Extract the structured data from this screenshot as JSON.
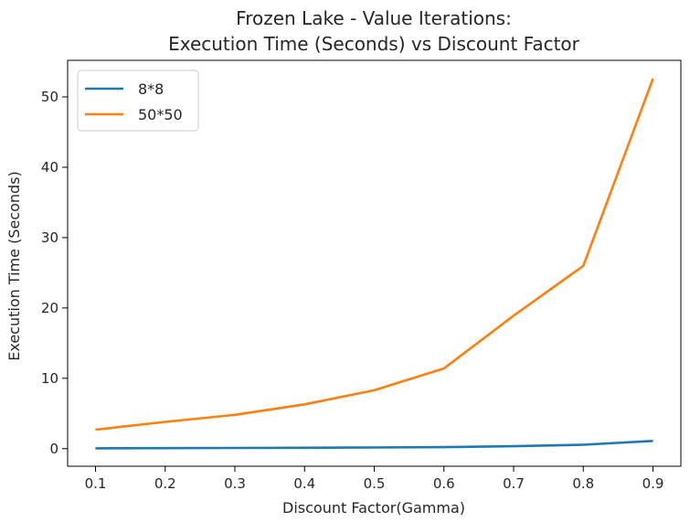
{
  "chart_data": {
    "type": "line",
    "title_lines": [
      "Frozen Lake - Value Iterations:",
      "Execution Time (Seconds) vs Discount Factor"
    ],
    "xlabel": "Discount Factor(Gamma)",
    "ylabel": "Execution Time (Seconds)",
    "x": [
      0.1,
      0.2,
      0.3,
      0.4,
      0.5,
      0.6,
      0.7,
      0.8,
      0.9
    ],
    "xticks": [
      "0.1",
      "0.2",
      "0.3",
      "0.4",
      "0.5",
      "0.6",
      "0.7",
      "0.8",
      "0.9"
    ],
    "yticks": [
      "0",
      "10",
      "20",
      "30",
      "40",
      "50"
    ],
    "xlim": [
      0.06,
      0.94
    ],
    "ylim": [
      -2.5,
      55.2
    ],
    "grid": false,
    "legend_position": "top-left",
    "series": [
      {
        "name": "8*8",
        "color": "#1f77b4",
        "values": [
          0.05,
          0.07,
          0.1,
          0.13,
          0.17,
          0.22,
          0.35,
          0.55,
          1.1
        ]
      },
      {
        "name": "50*50",
        "color": "#ff7f0e",
        "values": [
          2.7,
          3.8,
          4.8,
          6.3,
          8.3,
          11.4,
          18.9,
          26.0,
          52.6
        ]
      }
    ]
  }
}
